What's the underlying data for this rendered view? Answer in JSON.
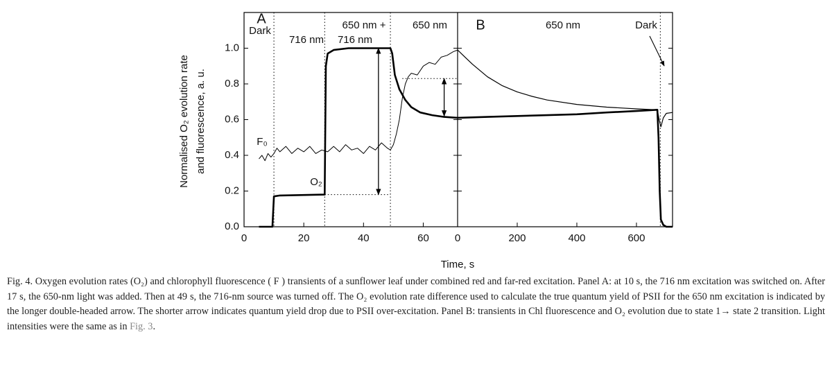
{
  "chart_data": [
    {
      "type": "line",
      "panel": "A",
      "xlim": [
        0,
        71.5
      ],
      "xticks": [
        0,
        20,
        40,
        60
      ],
      "ylim": [
        0,
        1.2
      ],
      "yticks": [
        {
          "value": 0,
          "label": "0.0"
        },
        0.2,
        0.4,
        0.6,
        0.8,
        {
          "value": 1,
          "label": "1.0"
        }
      ],
      "ylabel": [
        "Normalised O₂ evolution rate",
        "and fluorescence, a. u."
      ],
      "vlines": [
        10,
        27,
        49
      ],
      "guides": [
        {
          "y": 0.18,
          "x": [
            27,
            49
          ]
        },
        {
          "y": 0.83,
          "x": [
            53,
            71.5
          ]
        }
      ],
      "arrows": [
        {
          "x": 45,
          "y": [
            0.18,
            1.0
          ]
        },
        {
          "x": 67,
          "y": [
            0.62,
            0.83
          ]
        }
      ],
      "annotations": [
        "A",
        "Dark",
        "716 nm",
        "650 nm +",
        "716 nm",
        "650 nm",
        "F₀",
        "O₂"
      ],
      "series": [
        {
          "name": "O2",
          "color": "#000",
          "width": 2.6,
          "x": [
            5,
            9.5,
            10,
            12,
            27,
            27.4,
            28,
            30,
            35,
            49,
            49.6,
            50.5,
            52,
            54,
            56,
            59,
            63,
            67,
            71.5
          ],
          "values": [
            0,
            0,
            0.17,
            0.175,
            0.18,
            0.9,
            0.97,
            0.99,
            1.0,
            1.0,
            0.97,
            0.85,
            0.77,
            0.71,
            0.67,
            0.64,
            0.625,
            0.615,
            0.61
          ]
        },
        {
          "name": "F",
          "color": "#000",
          "width": 1,
          "x": [
            5,
            6,
            7,
            8,
            9,
            10,
            11,
            12,
            14,
            16,
            18,
            20,
            22,
            24,
            26,
            28,
            30,
            32,
            34,
            36,
            38,
            40,
            42,
            44,
            46,
            48,
            49,
            50,
            51,
            52,
            53,
            54,
            55,
            56,
            58,
            60,
            62,
            64,
            66,
            68,
            70,
            71.5
          ],
          "values": [
            0.38,
            0.4,
            0.37,
            0.41,
            0.39,
            0.41,
            0.44,
            0.42,
            0.45,
            0.41,
            0.44,
            0.42,
            0.45,
            0.41,
            0.43,
            0.42,
            0.45,
            0.42,
            0.46,
            0.43,
            0.44,
            0.41,
            0.45,
            0.43,
            0.47,
            0.44,
            0.43,
            0.46,
            0.52,
            0.6,
            0.72,
            0.8,
            0.84,
            0.86,
            0.85,
            0.9,
            0.92,
            0.91,
            0.95,
            0.96,
            0.98,
            0.99
          ]
        }
      ]
    },
    {
      "type": "line",
      "panel": "B",
      "xlim": [
        0,
        721
      ],
      "xticks": [
        0,
        200,
        400,
        600
      ],
      "ylim": [
        0,
        1.2
      ],
      "xlabel": "Time, s",
      "vlines": [
        680
      ],
      "annotations": [
        "B",
        "650 nm",
        "Dark"
      ],
      "series": [
        {
          "name": "O2",
          "color": "#000",
          "width": 2.6,
          "x": [
            0,
            100,
            200,
            300,
            400,
            500,
            600,
            670,
            674,
            678,
            682,
            690,
            700,
            721
          ],
          "values": [
            0.61,
            0.615,
            0.62,
            0.625,
            0.63,
            0.64,
            0.648,
            0.655,
            0.5,
            0.2,
            0.04,
            0.01,
            0,
            0
          ]
        },
        {
          "name": "F",
          "color": "#000",
          "width": 1.2,
          "x": [
            0,
            25,
            50,
            100,
            150,
            200,
            250,
            300,
            400,
            500,
            600,
            670,
            676,
            682,
            690,
            700,
            721
          ],
          "values": [
            0.99,
            0.95,
            0.91,
            0.84,
            0.79,
            0.755,
            0.73,
            0.71,
            0.685,
            0.67,
            0.66,
            0.655,
            0.6,
            0.56,
            0.61,
            0.635,
            0.64
          ]
        }
      ]
    }
  ],
  "caption": [
    "Fig. 4. Oxygen evolution rates (O₂) and chlorophyll fluorescence ( F ) transients of a sunflower leaf under combined red and far-red excitation. Panel A: at 10 s, the 716 nm excitation was switched on. After 17 s, the 650-nm light was added. Then at 49 s, the 716-nm source was turned off. The O₂ evolution rate difference used to calculate the true quantum yield of PSII for the 650 nm excitation is indicated by the longer double-headed arrow. The shorter arrow indicates quantum yield drop due to PSII over-excitation. Panel B: transients in Chl fluorescence and O₂ evolution due to state 1→ state 2 transition. Light intensities were the same as in ",
    "Fig. 3",
    "."
  ]
}
